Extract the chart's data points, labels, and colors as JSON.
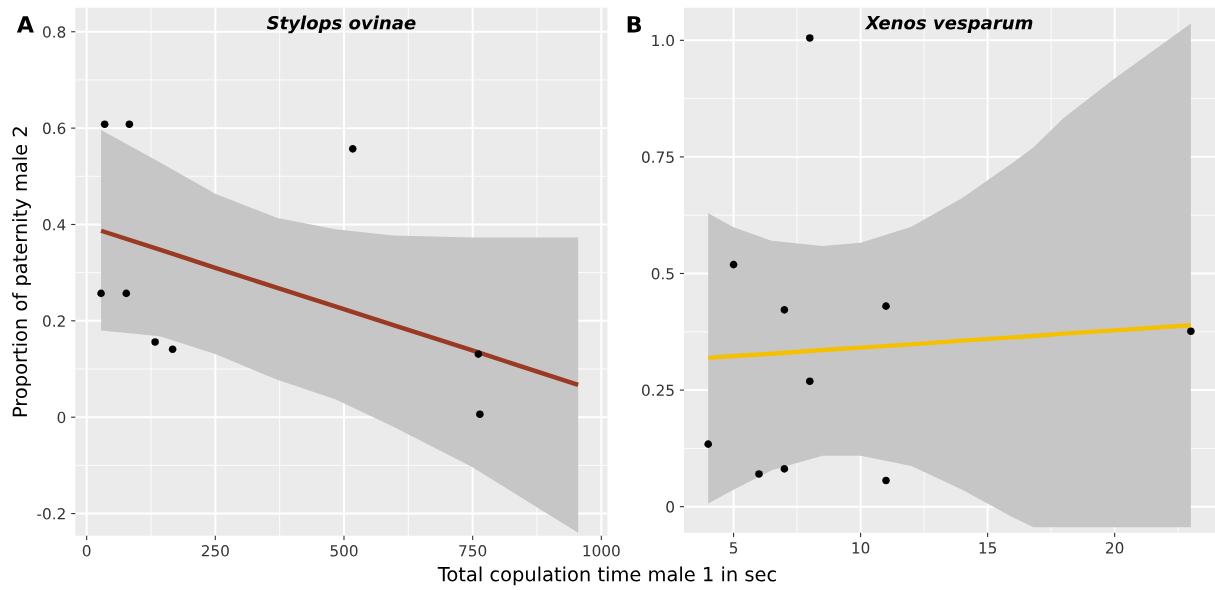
{
  "chart_data": [
    {
      "type": "scatter",
      "title": "Stylops ovinae",
      "ylabel": "Proportion of paternity male 2",
      "xlabel": "Total copulation time male 1 in sec",
      "annotations": [
        "A"
      ],
      "xlim": [
        -22,
        1012
      ],
      "ylim": [
        -0.246,
        0.85
      ],
      "xticks": [
        0,
        250,
        500,
        750,
        1000
      ],
      "yticks": [
        {
          "value": -0.2,
          "label": "-0.2"
        },
        0,
        0.2,
        0.4,
        0.6,
        0.8
      ],
      "grid": true,
      "series": [
        {
          "marker": "circle",
          "color": "#000000",
          "x": [
            28,
            35,
            83,
            77,
            133,
            167,
            517,
            761,
            764
          ],
          "values": [
            0.257,
            0.608,
            0.608,
            0.257,
            0.156,
            0.141,
            0.557,
            0.131,
            0.006
          ]
        },
        {
          "type": "line",
          "color": "#9b3a22",
          "x": [
            28,
            142,
            250,
            369,
            483,
            596,
            748,
            955
          ],
          "values": [
            0.387,
            0.348,
            0.31,
            0.269,
            0.23,
            0.191,
            0.139,
            0.067
          ],
          "lower": [
            0.18,
            0.168,
            0.131,
            0.078,
            0.037,
            -0.02,
            -0.103,
            -0.24
          ],
          "upper": [
            0.596,
            0.529,
            0.464,
            0.414,
            0.39,
            0.377,
            0.373,
            0.373
          ]
        }
      ]
    },
    {
      "type": "scatter",
      "title": "Xenos vesparum",
      "annotations": [
        "B"
      ],
      "xlim": [
        3.05,
        23.95
      ],
      "ylim": [
        -0.056,
        1.07
      ],
      "xticks": [
        5,
        10,
        15,
        20
      ],
      "yticks": [
        0,
        0.25,
        0.5,
        0.75,
        {
          "value": 1.0,
          "label": "1.0"
        }
      ],
      "grid": true,
      "series": [
        {
          "marker": "circle",
          "color": "#000000",
          "x": [
            4,
            5,
            6,
            7,
            7,
            8,
            8,
            11,
            11,
            23
          ],
          "values": [
            0.134,
            0.519,
            0.07,
            0.422,
            0.081,
            1.005,
            0.269,
            0.43,
            0.056,
            0.376
          ]
        },
        {
          "type": "line",
          "color": "#f5c000",
          "x": [
            4,
            5,
            6.5,
            8.5,
            10,
            12,
            14,
            16,
            16.8,
            18,
            20,
            23
          ],
          "values": [
            0.319,
            0.323,
            0.328,
            0.336,
            0.341,
            0.348,
            0.356,
            0.363,
            0.366,
            0.371,
            0.378,
            0.389
          ],
          "lower": [
            0.007,
            0.036,
            0.078,
            0.109,
            0.109,
            0.087,
            0.036,
            -0.023,
            -0.044,
            -0.044,
            -0.044,
            -0.044
          ],
          "upper": [
            0.629,
            0.599,
            0.57,
            0.559,
            0.566,
            0.6,
            0.662,
            0.738,
            0.77,
            0.834,
            0.918,
            1.036
          ]
        }
      ]
    }
  ]
}
